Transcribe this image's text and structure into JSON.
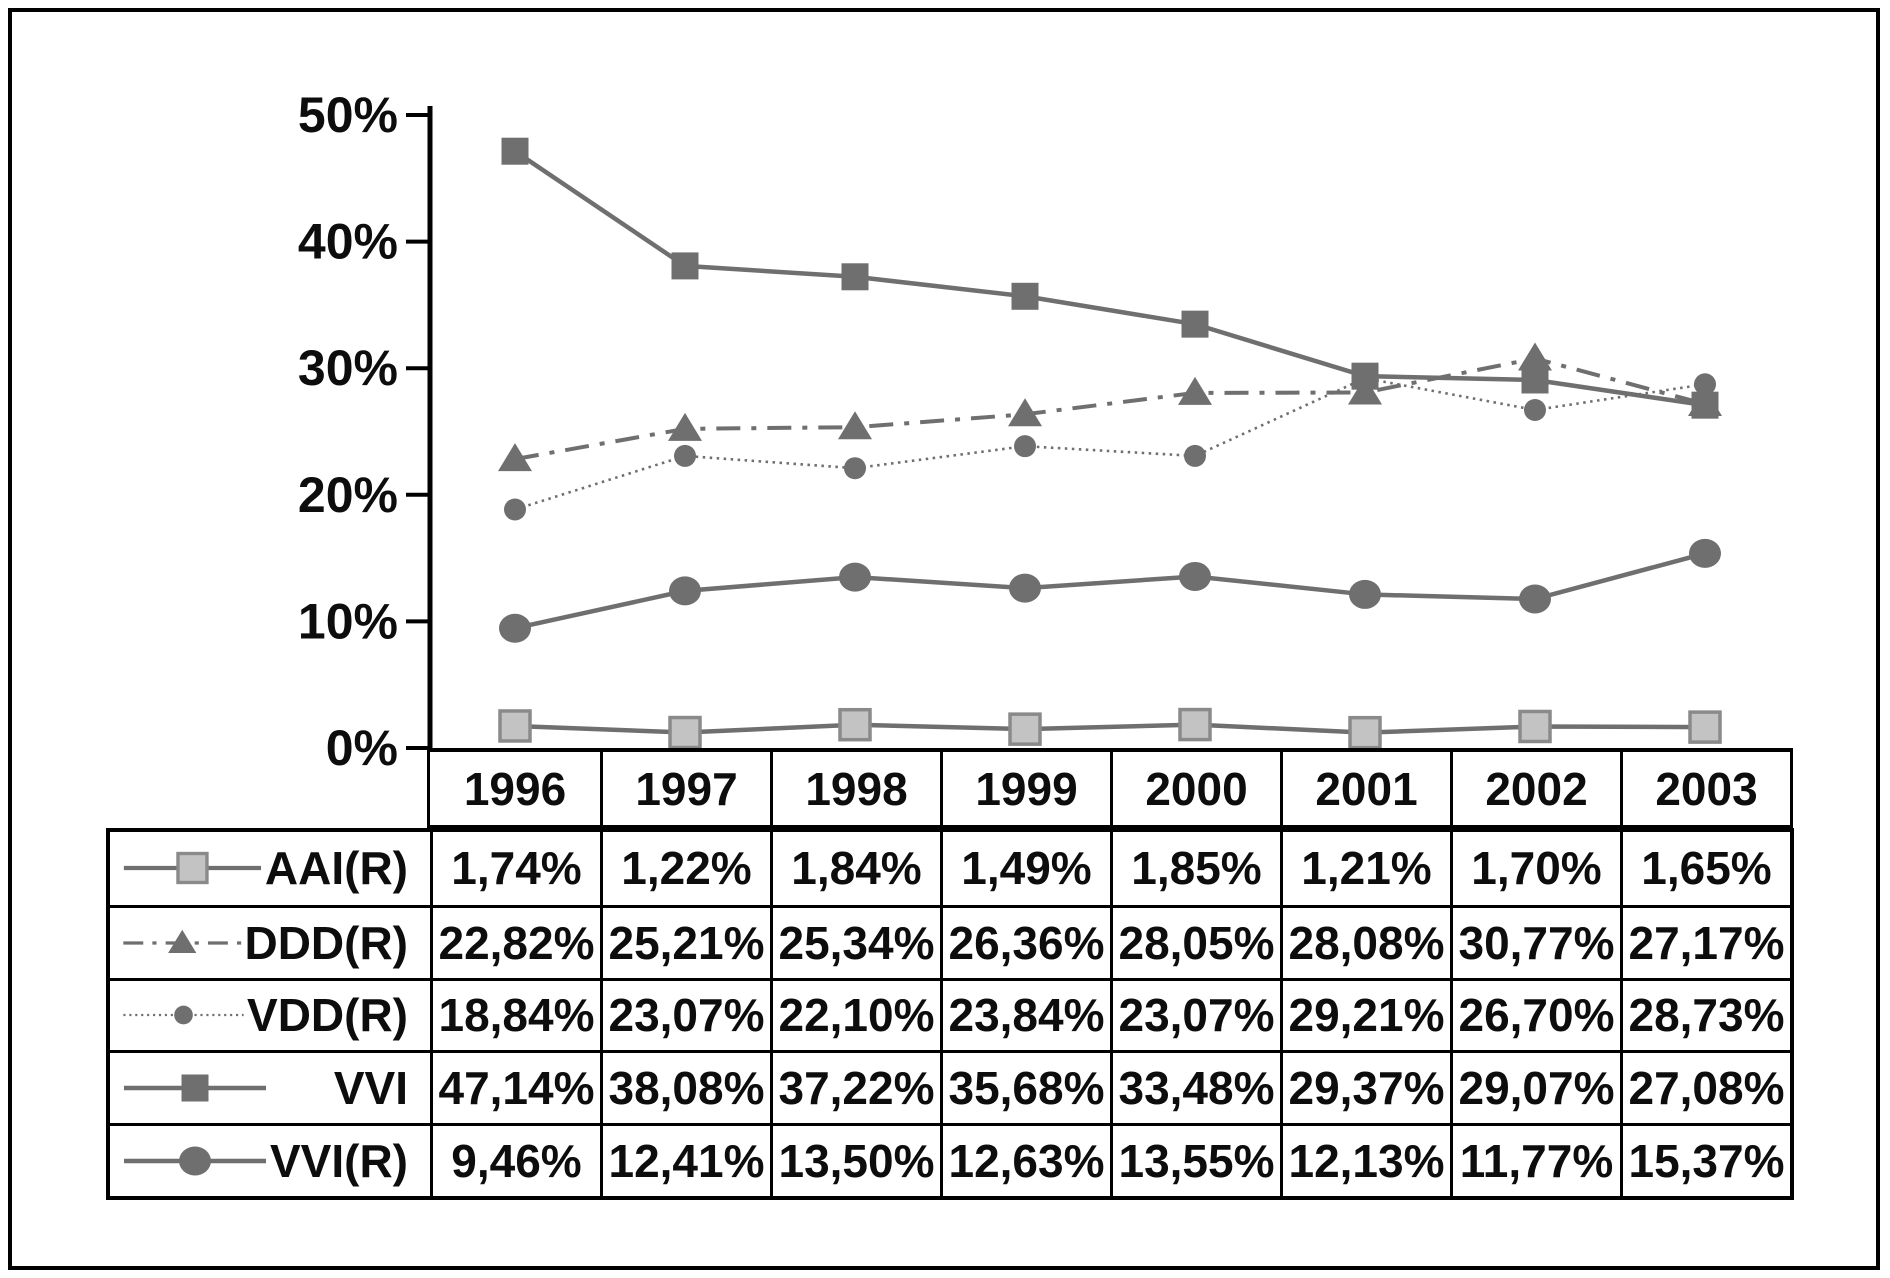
{
  "figure": {
    "background": "#ffffff",
    "frame_color": "#000000",
    "text_color": "#0d0d0d",
    "series_color": "#6f6f6f",
    "light_marker_fill": "#c3c3c3",
    "light_marker_stroke": "#8a8a8a"
  },
  "chart_data": {
    "type": "line",
    "title": "",
    "xlabel": "",
    "ylabel": "",
    "x": [
      "1996",
      "1997",
      "1998",
      "1999",
      "2000",
      "2001",
      "2002",
      "2003"
    ],
    "ylim": [
      0,
      50
    ],
    "yticks": [
      {
        "label": "50%",
        "value": 50
      },
      {
        "label": "40%",
        "value": 40
      },
      {
        "label": "30%",
        "value": 30
      },
      {
        "label": "20%",
        "value": 20
      },
      {
        "label": "10%",
        "value": 10
      },
      {
        "label": "0%",
        "value": 0
      }
    ],
    "grid": false,
    "legend_position": "table-left",
    "series": [
      {
        "name": "AAI(R)",
        "line_style": "solid",
        "marker": "square-light",
        "color": "#6f6f6f",
        "values": [
          1.74,
          1.22,
          1.84,
          1.49,
          1.85,
          1.21,
          1.7,
          1.65
        ]
      },
      {
        "name": "DDD(R)",
        "line_style": "dashdot",
        "marker": "triangle",
        "color": "#6f6f6f",
        "values": [
          22.82,
          25.21,
          25.34,
          26.36,
          28.05,
          28.08,
          30.77,
          27.17
        ]
      },
      {
        "name": "VDD(R)",
        "line_style": "dotted",
        "marker": "circle-small",
        "color": "#6f6f6f",
        "values": [
          18.84,
          23.07,
          22.1,
          23.84,
          23.07,
          29.21,
          26.7,
          28.73
        ]
      },
      {
        "name": "VVI",
        "line_style": "solid",
        "marker": "square",
        "color": "#6f6f6f",
        "values": [
          47.14,
          38.08,
          37.22,
          35.68,
          33.48,
          29.37,
          29.07,
          27.08
        ]
      },
      {
        "name": "VVI(R)",
        "line_style": "solid",
        "marker": "circle",
        "color": "#6f6f6f",
        "values": [
          9.46,
          12.41,
          13.5,
          12.63,
          13.55,
          12.13,
          11.77,
          15.37
        ]
      }
    ]
  },
  "table": {
    "years": [
      "1996",
      "1997",
      "1998",
      "1999",
      "2000",
      "2001",
      "2002",
      "2003"
    ],
    "rows": [
      {
        "label": "AAI(R)",
        "values": [
          "1,74%",
          "1,22%",
          "1,84%",
          "1,49%",
          "1,85%",
          "1,21%",
          "1,70%",
          "1,65%"
        ]
      },
      {
        "label": "DDD(R)",
        "values": [
          "22,82%",
          "25,21%",
          "25,34%",
          "26,36%",
          "28,05%",
          "28,08%",
          "30,77%",
          "27,17%"
        ]
      },
      {
        "label": "VDD(R)",
        "values": [
          "18,84%",
          "23,07%",
          "22,10%",
          "23,84%",
          "23,07%",
          "29,21%",
          "26,70%",
          "28,73%"
        ]
      },
      {
        "label": "VVI",
        "values": [
          "47,14%",
          "38,08%",
          "37,22%",
          "35,68%",
          "33,48%",
          "29,37%",
          "29,07%",
          "27,08%"
        ]
      },
      {
        "label": "VVI(R)",
        "values": [
          "9,46%",
          "12,41%",
          "13,50%",
          "12,63%",
          "13,55%",
          "12,13%",
          "11,77%",
          "15,37%"
        ]
      }
    ]
  }
}
